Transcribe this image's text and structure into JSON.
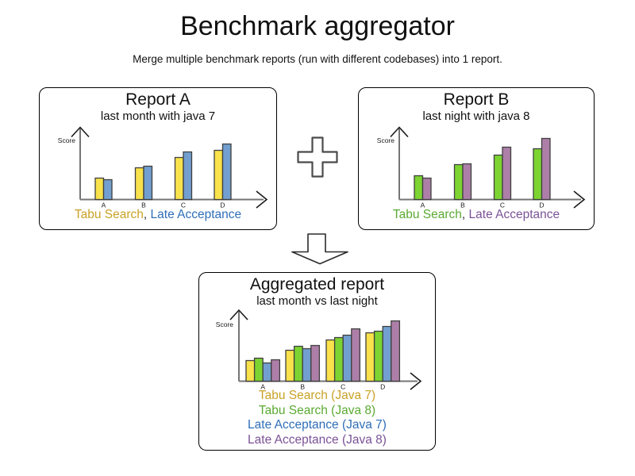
{
  "page": {
    "title": "Benchmark aggregator",
    "subtitle": "Merge multiple benchmark reports (run with different codebases) into 1 report."
  },
  "operators": {
    "plus_icon": "plus-sign",
    "arrow_icon": "down-arrow"
  },
  "panels": [
    {
      "id": "report-a",
      "title": "Report A",
      "subtitle": "last month with java 7",
      "legend_style": "inline",
      "legend_separator": ", ",
      "legend": [
        {
          "text": "Tabu Search",
          "color": "#c9a227"
        },
        {
          "text": "Late Acceptance",
          "color": "#2e6eb8"
        }
      ]
    },
    {
      "id": "report-b",
      "title": "Report B",
      "subtitle": "last night with java 8",
      "legend_style": "inline",
      "legend_separator": ", ",
      "legend": [
        {
          "text": "Tabu Search",
          "color": "#5baa32"
        },
        {
          "text": "Late Acceptance",
          "color": "#7b5296"
        }
      ]
    },
    {
      "id": "aggregated",
      "title": "Aggregated report",
      "subtitle": "last month vs last night",
      "legend_style": "stacked",
      "legend": [
        {
          "text": "Tabu Search (Java 7)",
          "color": "#c9a227"
        },
        {
          "text": "Tabu Search (Java 8)",
          "color": "#5baa32"
        },
        {
          "text": "Late Acceptance (Java 7)",
          "color": "#2e6eb8"
        },
        {
          "text": "Late Acceptance (Java 8)",
          "color": "#7b5296"
        }
      ]
    }
  ],
  "chart_data": [
    {
      "id": "report-a",
      "type": "bar",
      "title": "Report A",
      "subtitle": "last month with java 7",
      "ylabel": "Score",
      "categories": [
        "A",
        "B",
        "C",
        "D"
      ],
      "series": [
        {
          "name": "Tabu Search",
          "color": "#f9e24b",
          "values": [
            27,
            40,
            53,
            62
          ]
        },
        {
          "name": "Late Acceptance",
          "color": "#729fcf",
          "values": [
            25,
            42,
            60,
            70
          ]
        }
      ],
      "axis_numeric_labels": false,
      "note": "no numeric ticks shown; values are relative bar heights"
    },
    {
      "id": "report-b",
      "type": "bar",
      "title": "Report B",
      "subtitle": "last night with java 8",
      "ylabel": "Score",
      "categories": [
        "A",
        "B",
        "C",
        "D"
      ],
      "series": [
        {
          "name": "Tabu Search",
          "color": "#7dd431",
          "values": [
            30,
            44,
            56,
            64
          ]
        },
        {
          "name": "Late Acceptance",
          "color": "#ad7fa8",
          "values": [
            27,
            45,
            66,
            77
          ]
        }
      ],
      "axis_numeric_labels": false,
      "note": "no numeric ticks shown; values are relative bar heights"
    },
    {
      "id": "aggregated",
      "type": "bar",
      "title": "Aggregated report",
      "subtitle": "last month vs last night",
      "ylabel": "Score",
      "categories": [
        "A",
        "B",
        "C",
        "D"
      ],
      "series": [
        {
          "name": "Tabu Search (Java 7)",
          "color": "#f9e24b",
          "values": [
            26,
            39,
            52,
            61
          ]
        },
        {
          "name": "Tabu Search (Java 8)",
          "color": "#7dd431",
          "values": [
            29,
            44,
            55,
            63
          ]
        },
        {
          "name": "Late Acceptance (Java 7)",
          "color": "#729fcf",
          "values": [
            23,
            41,
            58,
            69
          ]
        },
        {
          "name": "Late Acceptance (Java 8)",
          "color": "#ad7fa8",
          "values": [
            27,
            45,
            66,
            76
          ]
        }
      ],
      "axis_numeric_labels": false,
      "note": "no numeric ticks shown; values are relative bar heights"
    }
  ],
  "style": {
    "axis_color": "#757575",
    "arrowhead_color": "#1a1a1a",
    "bar_outline": "#3f3f3f",
    "connector_outline": "#4a4a4a"
  }
}
